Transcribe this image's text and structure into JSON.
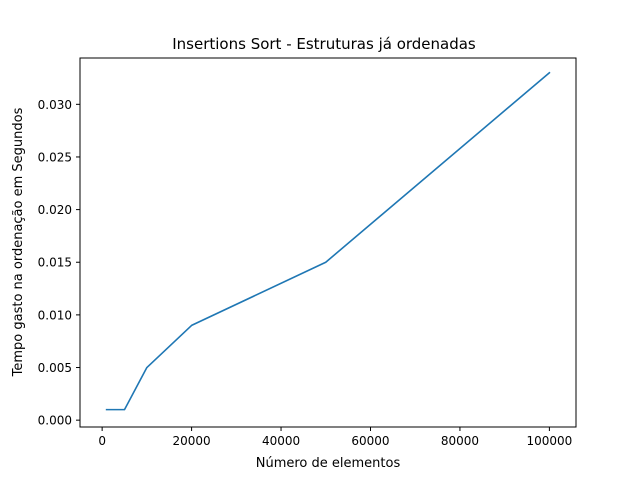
{
  "chart_data": {
    "type": "line",
    "title": "Insertions Sort - Estruturas já ordenadas",
    "xlabel": "Número de elementos",
    "ylabel": "Tempo gasto na ordenação  em Segundos",
    "xlim": [
      -4950,
      105950
    ],
    "ylim": [
      -0.00065,
      0.0344
    ],
    "x_ticks": [
      0,
      20000,
      40000,
      60000,
      80000,
      100000
    ],
    "x_tick_labels": [
      "0",
      "20000",
      "40000",
      "60000",
      "80000",
      "100000"
    ],
    "y_ticks": [
      0.0,
      0.005,
      0.01,
      0.015,
      0.02,
      0.025,
      0.03
    ],
    "y_tick_labels": [
      "0.000",
      "0.005",
      "0.010",
      "0.015",
      "0.020",
      "0.025",
      "0.030"
    ],
    "grid": false,
    "series": [
      {
        "color": "#1f77b4",
        "x": [
          1000,
          5000,
          10000,
          20000,
          50000,
          100000
        ],
        "y": [
          0.001,
          0.001,
          0.005,
          0.009,
          0.015,
          0.033
        ]
      }
    ]
  }
}
